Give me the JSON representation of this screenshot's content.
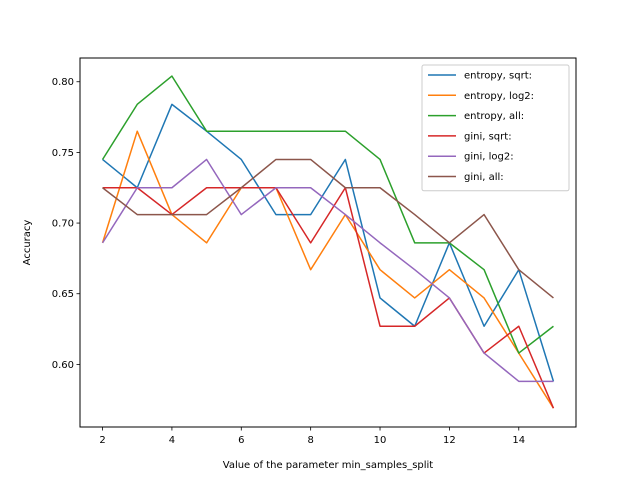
{
  "chart_data": {
    "type": "line",
    "title": "",
    "xlabel": "Value of the parameter min_samples_split",
    "ylabel": "Accuracy",
    "x": [
      2,
      3,
      4,
      5,
      6,
      7,
      8,
      9,
      10,
      11,
      12,
      13,
      14,
      15
    ],
    "xlim": [
      1.35,
      15.65
    ],
    "ylim": [
      0.5557,
      0.8168
    ],
    "xticks": [
      2,
      4,
      6,
      8,
      10,
      12,
      14
    ],
    "yticks": [
      0.6,
      0.65,
      0.7,
      0.75,
      0.8
    ],
    "ytick_labels": [
      "0.60",
      "0.65",
      "0.70",
      "0.75",
      "0.80"
    ],
    "grid": false,
    "legend_position": "top-right",
    "series": [
      {
        "name": "entropy, sqrt:",
        "color": "#1f77b4",
        "values": [
          0.745,
          0.725,
          0.784,
          0.765,
          0.745,
          0.706,
          0.706,
          0.745,
          0.647,
          0.627,
          0.686,
          0.627,
          0.667,
          0.588
        ]
      },
      {
        "name": "entropy, log2:",
        "color": "#ff7f0e",
        "values": [
          0.686,
          0.765,
          0.706,
          0.686,
          0.725,
          0.725,
          0.667,
          0.706,
          0.667,
          0.647,
          0.667,
          0.647,
          0.608,
          0.569
        ]
      },
      {
        "name": "entropy, all:",
        "color": "#2ca02c",
        "values": [
          0.745,
          0.784,
          0.804,
          0.765,
          0.765,
          0.765,
          0.765,
          0.765,
          0.745,
          0.686,
          0.686,
          0.667,
          0.608,
          0.627
        ]
      },
      {
        "name": "gini, sqrt:",
        "color": "#d62728",
        "values": [
          0.725,
          0.725,
          0.706,
          0.725,
          0.725,
          0.725,
          0.686,
          0.725,
          0.627,
          0.627,
          0.647,
          0.608,
          0.627,
          0.569
        ]
      },
      {
        "name": "gini, log2:",
        "color": "#9467bd",
        "values": [
          0.686,
          0.725,
          0.725,
          0.745,
          0.706,
          0.725,
          0.725,
          0.706,
          0.686,
          0.667,
          0.647,
          0.608,
          0.588,
          0.588
        ]
      },
      {
        "name": "gini, all:",
        "color": "#8c564b",
        "values": [
          0.725,
          0.706,
          0.706,
          0.706,
          0.725,
          0.745,
          0.745,
          0.725,
          0.725,
          0.706,
          0.686,
          0.706,
          0.667,
          0.647
        ]
      }
    ]
  }
}
